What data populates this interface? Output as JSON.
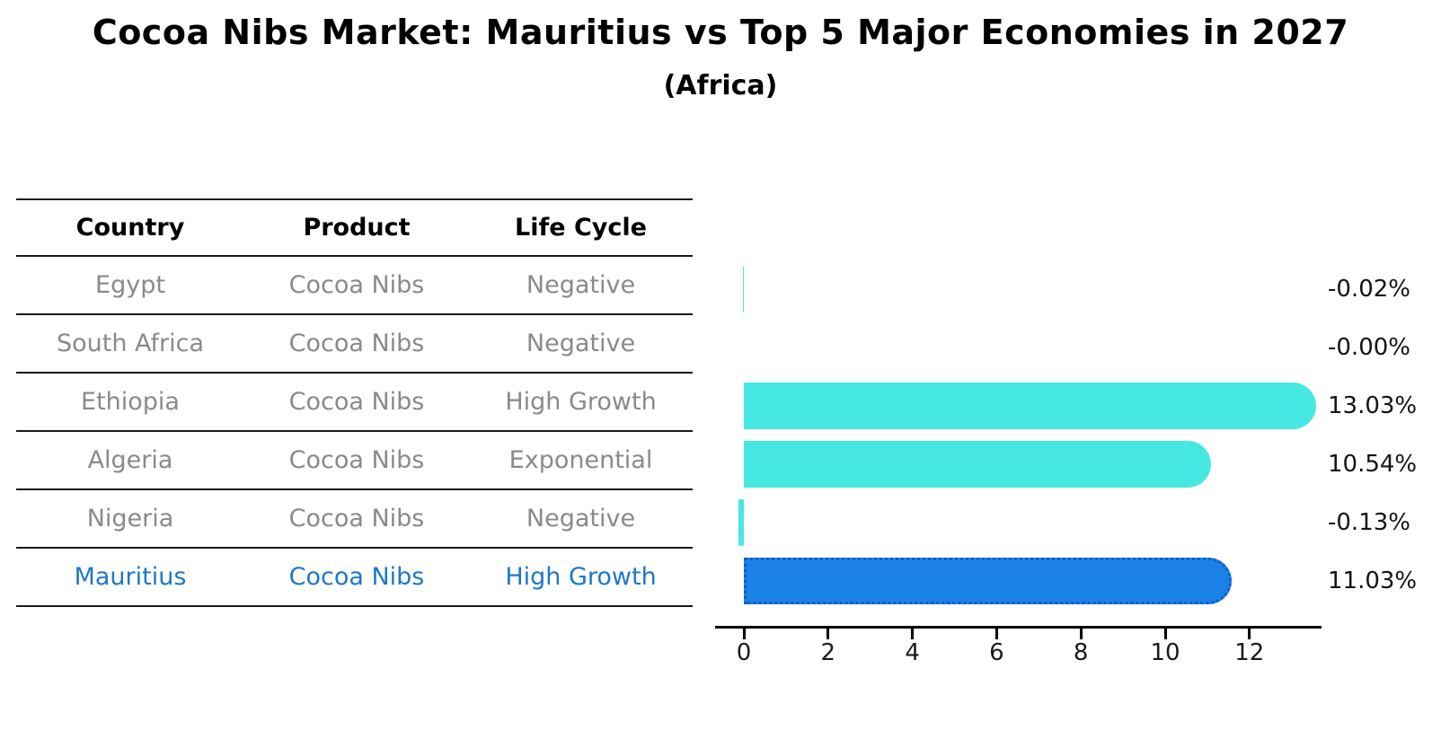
{
  "title": "Cocoa Nibs Market: Mauritius vs Top 5 Major Economies in 2027",
  "subtitle": "(Africa)",
  "colors": {
    "bar_default": "#46e8e2",
    "bar_highlight": "#1b82e8",
    "bar_highlight_edge": "#0d5ec6",
    "table_text_muted": "#8a8a8a",
    "table_text_highlight": "#1e78c8",
    "axis_color": "#000000",
    "label_color": "#141414"
  },
  "table": {
    "headers": [
      "Country",
      "Product",
      "Life Cycle"
    ],
    "rows": [
      {
        "country": "Egypt",
        "product": "Cocoa Nibs",
        "life_cycle": "Negative",
        "highlight": false
      },
      {
        "country": "South Africa",
        "product": "Cocoa Nibs",
        "life_cycle": "Negative",
        "highlight": false
      },
      {
        "country": "Ethiopia",
        "product": "Cocoa Nibs",
        "life_cycle": "High Growth",
        "highlight": false
      },
      {
        "country": "Algeria",
        "product": "Cocoa Nibs",
        "life_cycle": "Exponential",
        "highlight": false
      },
      {
        "country": "Nigeria",
        "product": "Cocoa Nibs",
        "life_cycle": "Negative",
        "highlight": false
      },
      {
        "country": "Mauritius",
        "product": "Cocoa Nibs",
        "life_cycle": "High Growth",
        "highlight": true
      }
    ]
  },
  "chart_data": {
    "type": "bar",
    "orientation": "horizontal",
    "title": "Cocoa Nibs Market: Mauritius vs Top 5 Major Economies in 2027 (Africa)",
    "xlabel": "",
    "ylabel": "",
    "categories": [
      "Egypt",
      "South Africa",
      "Ethiopia",
      "Algeria",
      "Nigeria",
      "Mauritius"
    ],
    "values": [
      -0.02,
      -0.0,
      13.03,
      10.54,
      -0.13,
      11.03
    ],
    "value_labels": [
      "-0.02%",
      "-0.00%",
      "13.03%",
      "10.54%",
      "-0.13%",
      "11.03%"
    ],
    "units": "percent CAGR",
    "highlight_index": 5,
    "x_ticks": [
      0,
      2,
      4,
      6,
      8,
      10,
      12
    ],
    "xlim": [
      -0.7,
      13.7
    ],
    "grid": false,
    "legend": false
  }
}
